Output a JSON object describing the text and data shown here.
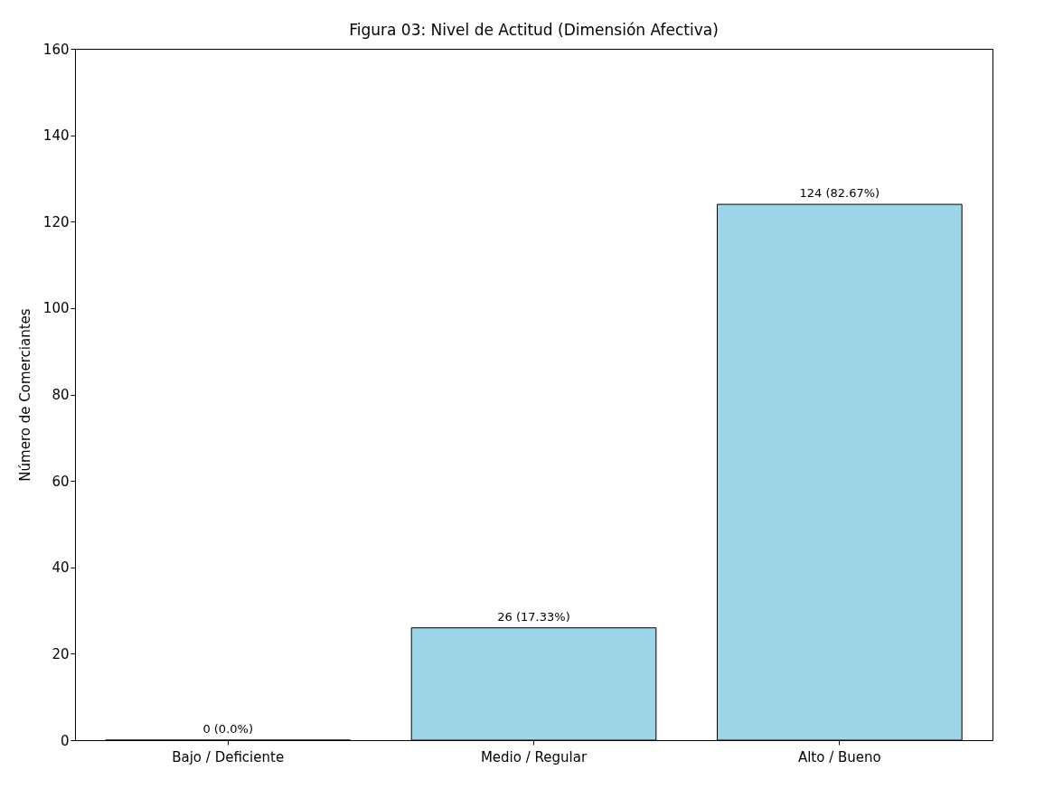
{
  "chart_data": {
    "type": "bar",
    "title": "Figura 03: Nivel de Actitud (Dimensión Afectiva)",
    "ylabel": "Número de Comerciantes",
    "categories": [
      "Bajo / Deficiente",
      "Medio / Regular",
      "Alto / Bueno"
    ],
    "values": [
      0,
      26,
      124
    ],
    "value_labels": [
      "0 (0.0%)",
      "26 (17.33%)",
      "124 (82.67%)"
    ],
    "color": "#9dd6e8",
    "ylim": [
      0,
      160
    ],
    "yticks": [
      0,
      20,
      40,
      60,
      80,
      100,
      120,
      140,
      160
    ],
    "grid": false
  }
}
